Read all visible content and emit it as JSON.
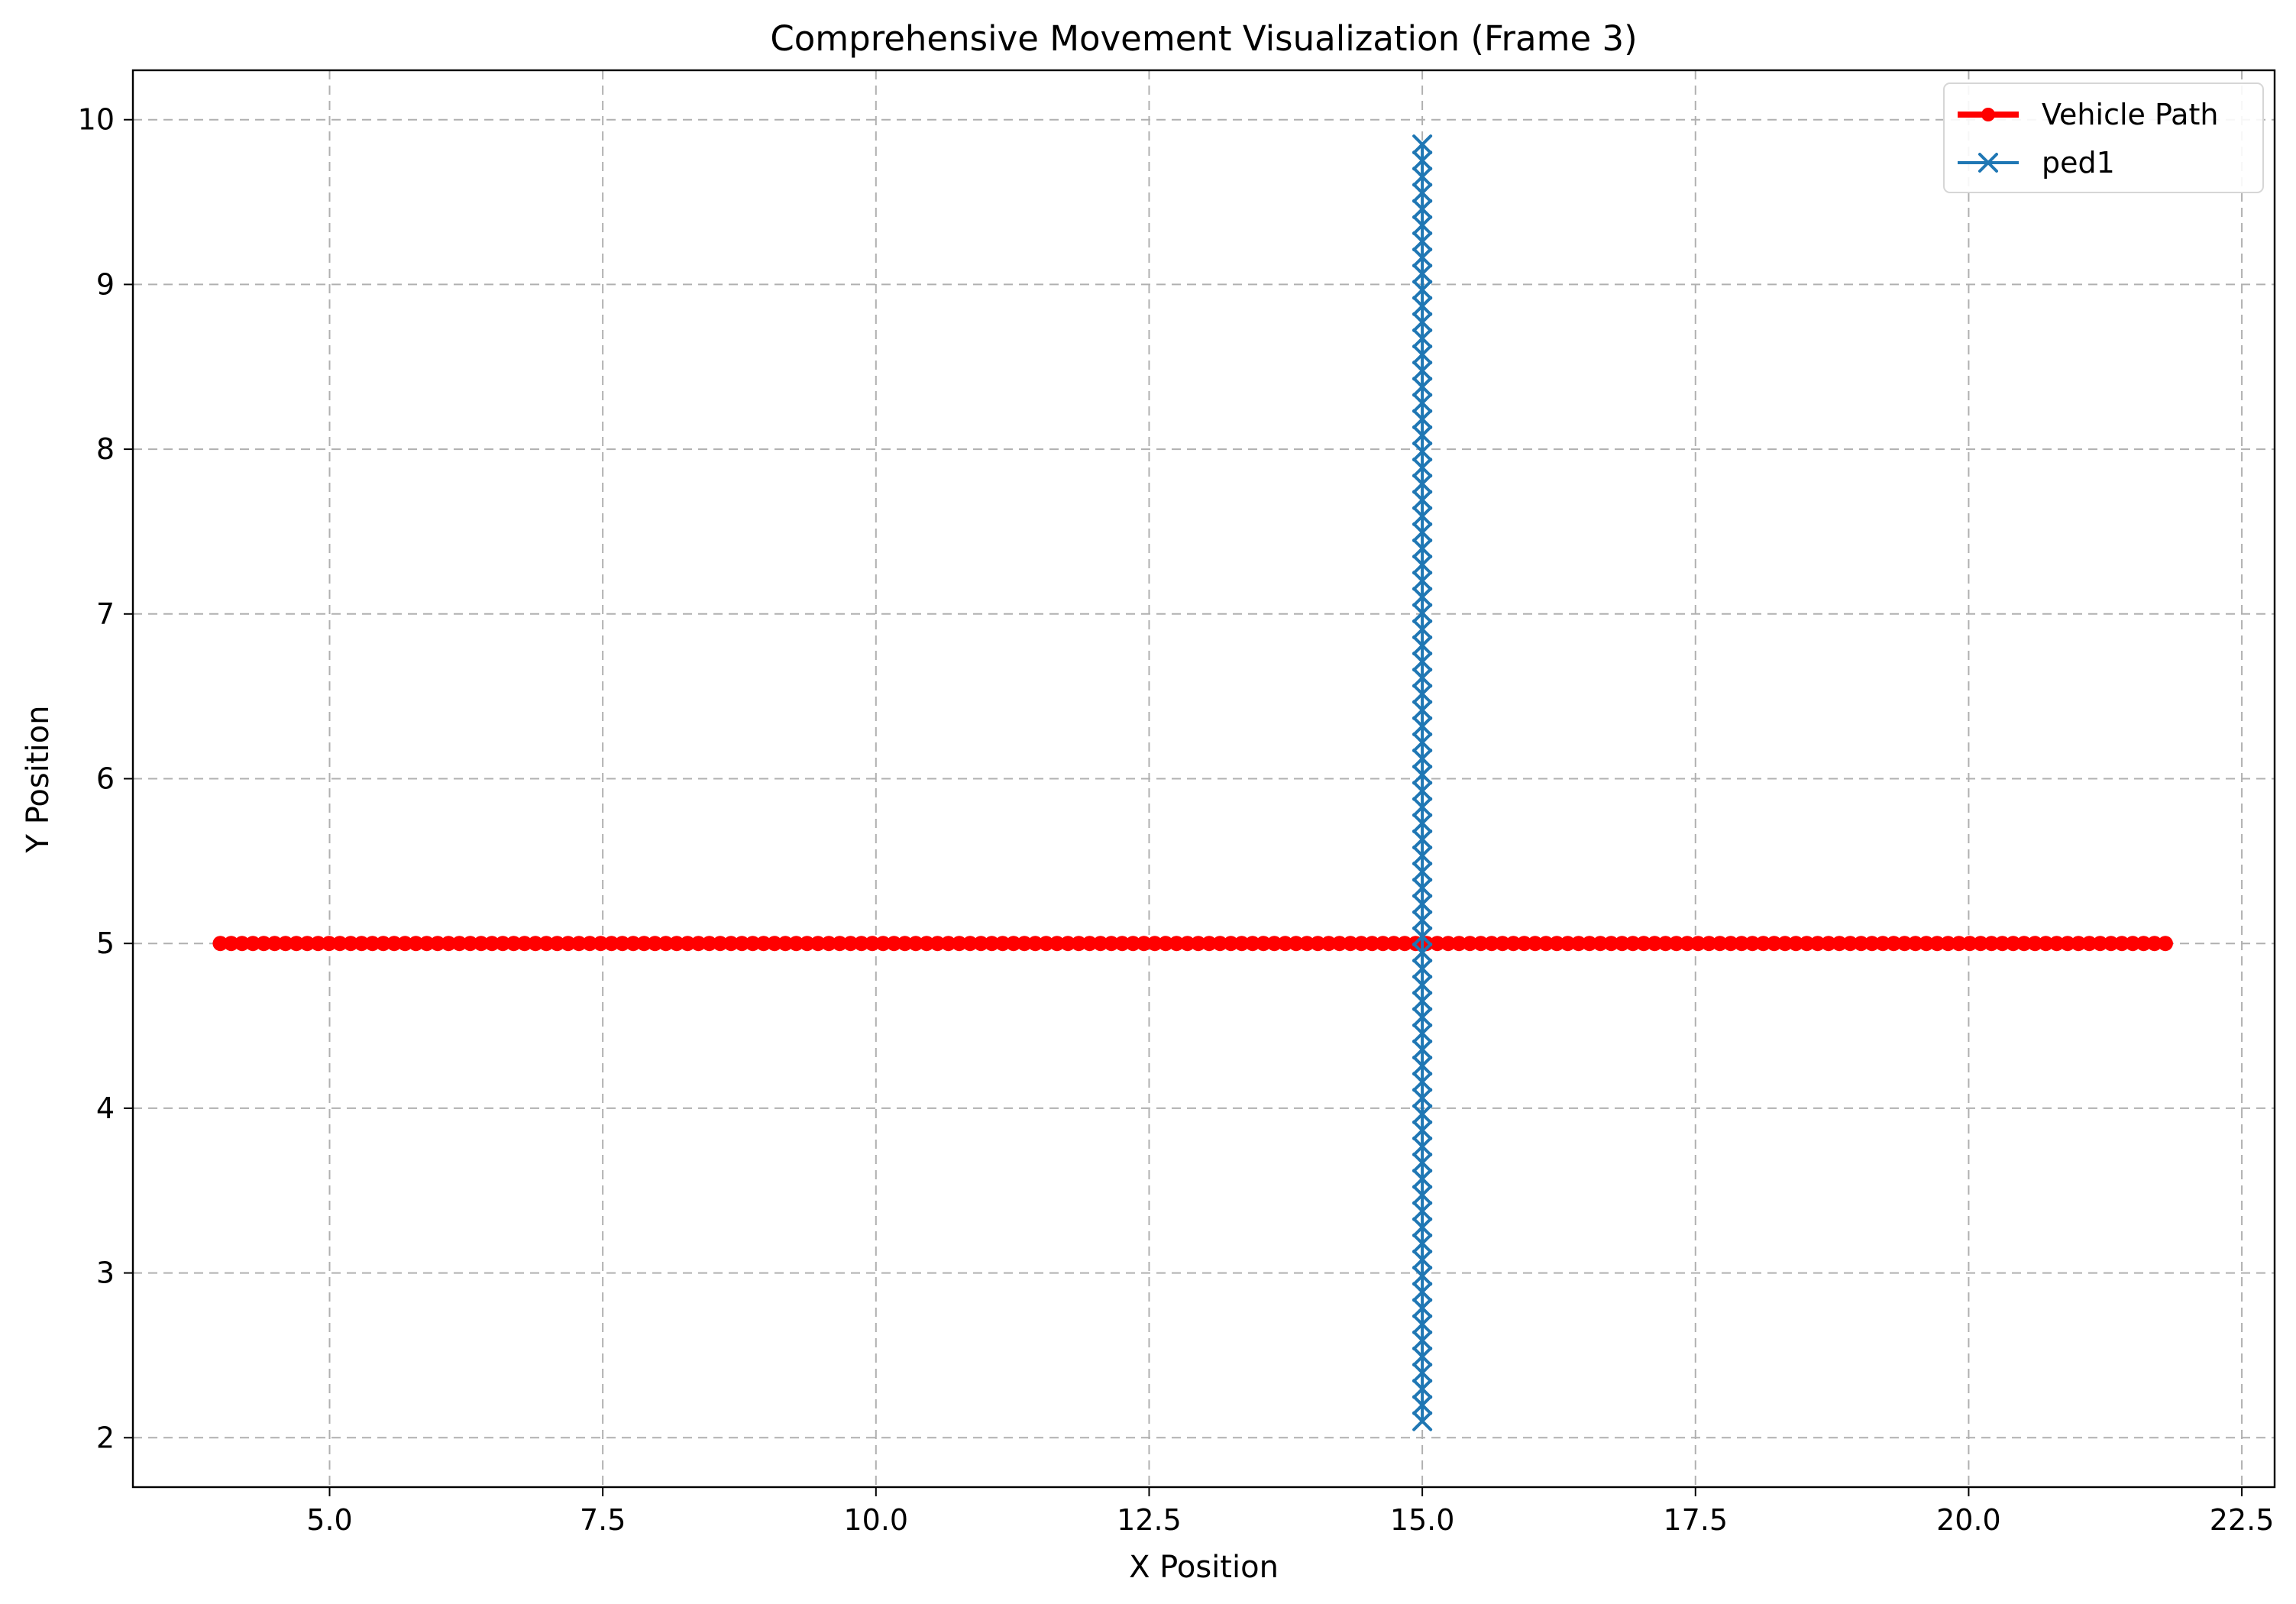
{
  "chart_data": {
    "type": "line",
    "title": "Comprehensive Movement Visualization (Frame 3)",
    "xlabel": "X Position",
    "ylabel": "Y Position",
    "xlim": [
      3.2,
      22.8
    ],
    "ylim": [
      1.7,
      10.3
    ],
    "x_ticks": [
      5.0,
      7.5,
      10.0,
      12.5,
      15.0,
      17.5,
      20.0,
      22.5
    ],
    "x_tick_labels": [
      "5.0",
      "7.5",
      "10.0",
      "12.5",
      "15.0",
      "17.5",
      "20.0",
      "22.5"
    ],
    "y_ticks": [
      2,
      3,
      4,
      5,
      6,
      7,
      8,
      9,
      10
    ],
    "y_tick_labels": [
      "2",
      "3",
      "4",
      "5",
      "6",
      "7",
      "8",
      "9",
      "10"
    ],
    "grid": true,
    "grid_style": "dashed",
    "legend_position": "top-right",
    "series": [
      {
        "name": "Vehicle Path",
        "color": "#ff0000",
        "marker": "circle",
        "line_width": "thick",
        "x_start": 4.0,
        "x_end": 21.8,
        "points": 180,
        "y": 5.0
      },
      {
        "name": "ped1",
        "color": "#1f77b4",
        "marker": "x",
        "line_width": "normal",
        "x": 15.0,
        "y_start": 2.1,
        "y_end": 9.85,
        "points": 80
      }
    ]
  }
}
